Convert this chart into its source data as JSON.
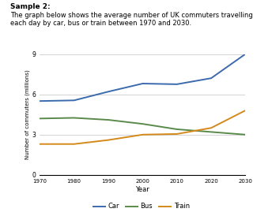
{
  "title_bold": "Sample 2:",
  "description_line1": "The graph below shows the average number of UK commuters travelling",
  "description_line2": "each day by car, bus or train between 1970 and 2030.",
  "years": [
    1970,
    1980,
    1990,
    2000,
    2010,
    2020,
    2030
  ],
  "car": [
    5.5,
    5.55,
    6.2,
    6.8,
    6.75,
    7.2,
    9.0
  ],
  "bus": [
    4.2,
    4.25,
    4.1,
    3.8,
    3.4,
    3.2,
    3.0
  ],
  "train": [
    2.3,
    2.3,
    2.6,
    3.0,
    3.05,
    3.5,
    4.8
  ],
  "car_color": "#3b6aad",
  "bus_color": "#5a8a4a",
  "train_color": "#d4891a",
  "xlabel": "Year",
  "ylabel": "Number of commuters (millions)",
  "ylim": [
    0,
    9
  ],
  "yticks": [
    0,
    3,
    6,
    9
  ],
  "xticks": [
    1970,
    1980,
    1990,
    2000,
    2010,
    2020,
    2030
  ],
  "grid_color": "#cccccc",
  "bg_color": "#ffffff",
  "legend_labels": [
    "Car",
    "Bus",
    "Train"
  ]
}
